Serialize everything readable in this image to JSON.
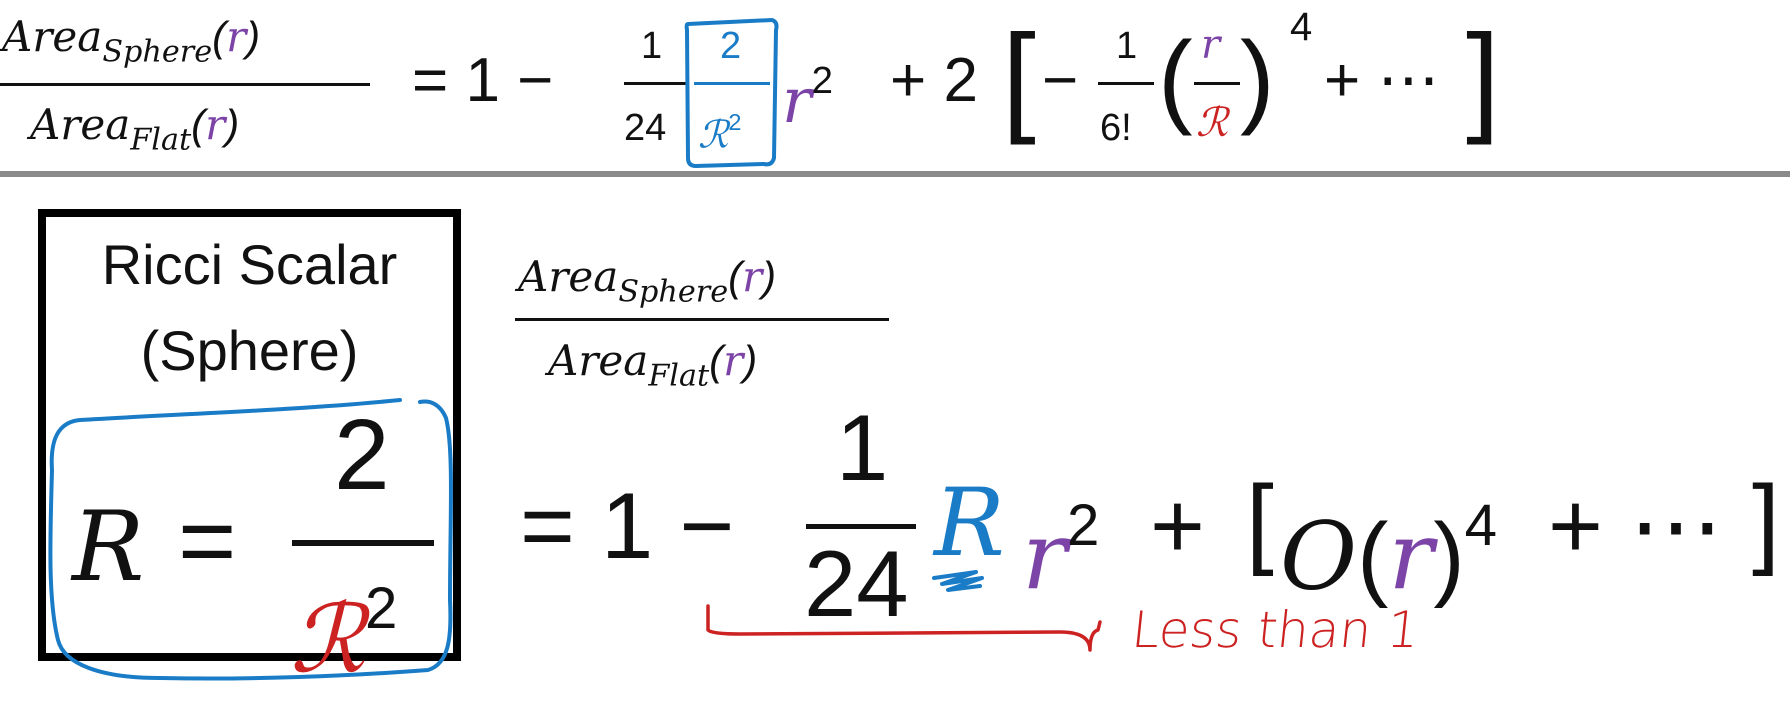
{
  "top_equation": {
    "lhs_num_area": "Area",
    "lhs_num_sub": "Sphere",
    "lhs_den_area": "Area",
    "lhs_den_sub": "Flat",
    "paren_open": "(",
    "paren_close": ")",
    "r": "r",
    "equals": "=",
    "one": "1",
    "minus": "−",
    "frac1_num": "1",
    "frac1_den": "24",
    "boxed_num": "2",
    "boxed_den_R": "ℛ",
    "boxed_den_exp": "2",
    "r_sq_base": "r",
    "r_sq_exp": "2",
    "plus": "+",
    "two": "2",
    "bracket_open": "[",
    "bracket_close": "]",
    "frac6_num": "1",
    "frac6_den": "6!",
    "big_paren_open": "(",
    "big_paren_close": ")",
    "inner_num": "r",
    "inner_den": "ℛ",
    "power4": "4",
    "ellipsis": "+ ⋯"
  },
  "ricci_box": {
    "title_line1": "Ricci Scalar",
    "title_line2": "(Sphere)",
    "R": "R",
    "equals": "=",
    "num": "2",
    "den_R": "ℛ",
    "den_exp": "2"
  },
  "bottom_equation": {
    "lhs_num_area": "Area",
    "lhs_num_sub": "Sphere",
    "lhs_den_area": "Area",
    "lhs_den_sub": "Flat",
    "paren_open": "(",
    "paren_close": ")",
    "r": "r",
    "equals": "=",
    "one": "1",
    "minus": "−",
    "frac_num": "1",
    "frac_den": "24",
    "R_blue": "R",
    "r_base": "r",
    "r_exp": "2",
    "plus": "+",
    "bracket_open": "[",
    "O": "O",
    "o_paren_open": "(",
    "o_r": "r",
    "o_paren_close": ")",
    "o_exp": "4",
    "plus2": "+ ⋯",
    "bracket_close": "]"
  },
  "annotation": {
    "less_than": "Less than 1"
  },
  "colors": {
    "purple": "#7d44a8",
    "blue": "#1a7cc7",
    "red": "#cc2222",
    "divider": "#8a8a8a"
  }
}
